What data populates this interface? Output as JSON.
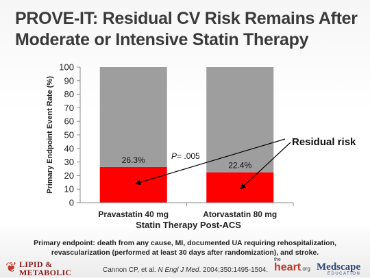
{
  "slide": {
    "title_line1": "PROVE-IT: Residual CV Risk Remains After",
    "title_line2": "Moderate or Intensive Statin Therapy",
    "caption_line1": "Primary endpoint: death from any cause, MI, documented UA requiring rehospitalization,",
    "caption_line2": "revascularization (performed at least 30 days after randomization), and stroke.",
    "citation_authors": "Cannon CP, et al. ",
    "citation_journal": "N Engl J Med",
    "citation_rest": ". 2004;350:1495-1504.",
    "logo_left_line1": "LIPID &",
    "logo_left_line2": "METABOLIC",
    "logo_heart_prefix": "the",
    "logo_heart_main": "heart",
    "logo_heart_suffix": ".org",
    "logo_medscape": "Medscape",
    "logo_medscape_sub": "EDUCATION"
  },
  "chart_data": {
    "type": "bar",
    "categories": [
      "Pravastatin 40 mg",
      "Atorvastatin 80 mg"
    ],
    "series": [
      {
        "name": "",
        "values": [
          26.3,
          22.4
        ],
        "color": "#ff0000"
      },
      {
        "name": "",
        "values": [
          73.7,
          77.6
        ],
        "color": "#9e9e9e"
      }
    ],
    "stacked": true,
    "data_labels": [
      "26.3%",
      "22.4%"
    ],
    "xlabel": "Statin Therapy Post-ACS",
    "ylabel": "Primary Endpoint Event Rate (%)",
    "ylim": [
      0,
      100
    ],
    "yticks": [
      0,
      10,
      20,
      30,
      40,
      50,
      60,
      70,
      80,
      90,
      100
    ],
    "annotations": {
      "p_value_italic": "P",
      "p_value_rest": "= .005",
      "residual_risk": "Residual risk"
    },
    "grid": false,
    "legend": "none"
  }
}
